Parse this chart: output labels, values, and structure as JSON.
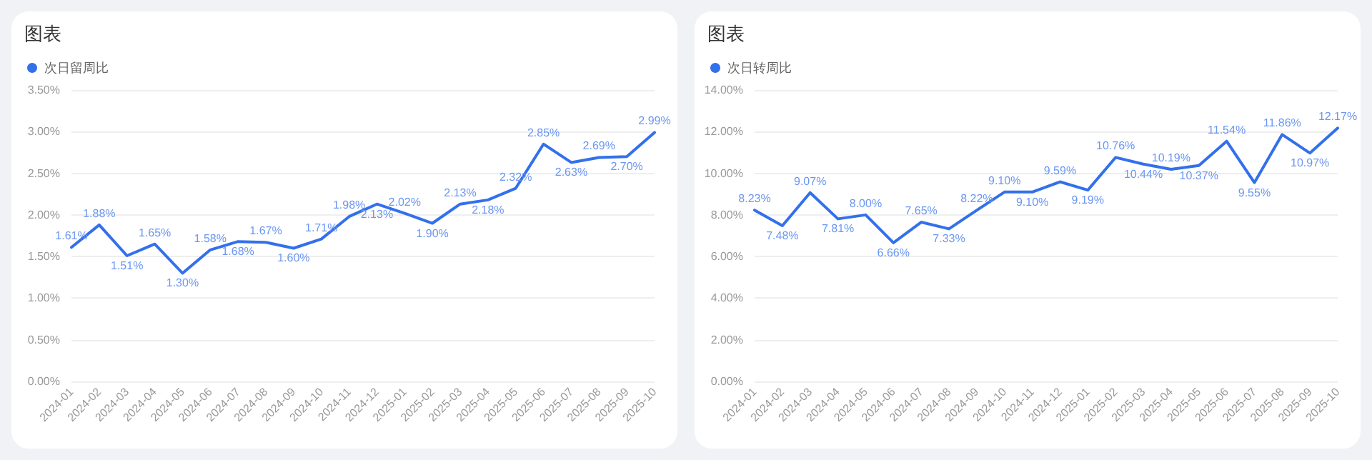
{
  "chart_data": [
    {
      "type": "line",
      "title": "图表",
      "categories": [
        "2024-01",
        "2024-02",
        "2024-03",
        "2024-04",
        "2024-05",
        "2024-06",
        "2024-07",
        "2024-08",
        "2024-09",
        "2024-10",
        "2024-11",
        "2024-12",
        "2025-01",
        "2025-02",
        "2025-03",
        "2025-04",
        "2025-05",
        "2025-06",
        "2025-07",
        "2025-08",
        "2025-09",
        "2025-10"
      ],
      "series": [
        {
          "name": "次日留周比",
          "color": "#3370eb",
          "values": [
            1.61,
            1.88,
            1.51,
            1.65,
            1.3,
            1.58,
            1.68,
            1.67,
            1.6,
            1.71,
            1.98,
            2.13,
            2.02,
            1.9,
            2.13,
            2.18,
            2.32,
            2.85,
            2.63,
            2.69,
            2.7,
            2.99
          ],
          "value_labels": [
            "1.61%",
            "1.88%",
            "1.51%",
            "1.65%",
            "1.30%",
            "1.58%",
            "1.68%",
            "1.67%",
            "1.60%",
            "1.71%",
            "1.98%",
            "2.13%",
            "2.02%",
            "1.90%",
            "2.13%",
            "2.18%",
            "2.32%",
            "2.85%",
            "2.63%",
            "2.69%",
            "2.70%",
            "2.99%"
          ]
        }
      ],
      "ylim": [
        0,
        3.5
      ],
      "yticks": [
        {
          "value": 0,
          "label": "0.00%"
        },
        {
          "value": 0.5,
          "label": "0.50%"
        },
        {
          "value": 1,
          "label": "1.00%"
        },
        {
          "value": 1.5,
          "label": "1.50%"
        },
        {
          "value": 2,
          "label": "2.00%"
        },
        {
          "value": 2.5,
          "label": "2.50%"
        },
        {
          "value": 3,
          "label": "3.00%"
        },
        {
          "value": 3.5,
          "label": "3.50%"
        }
      ],
      "grid": "y",
      "legend": "top left",
      "marker": "none",
      "line_style": "solid"
    },
    {
      "type": "line",
      "title": "图表",
      "categories": [
        "2024-01",
        "2024-02",
        "2024-03",
        "2024-04",
        "2024-05",
        "2024-06",
        "2024-07",
        "2024-08",
        "2024-09",
        "2024-10",
        "2024-11",
        "2024-12",
        "2025-01",
        "2025-02",
        "2025-03",
        "2025-04",
        "2025-05",
        "2025-06",
        "2025-07",
        "2025-08",
        "2025-09",
        "2025-10"
      ],
      "series": [
        {
          "name": "次日转周比",
          "color": "#3370eb",
          "values": [
            8.23,
            7.48,
            9.07,
            7.81,
            8.0,
            6.66,
            7.65,
            7.33,
            8.22,
            9.1,
            9.1,
            9.59,
            9.19,
            10.76,
            10.44,
            10.19,
            10.37,
            11.54,
            9.55,
            11.86,
            10.97,
            12.17
          ],
          "value_labels": [
            "8.23%",
            "7.48%",
            "9.07%",
            "7.81%",
            "8.00%",
            "6.66%",
            "7.65%",
            "7.33%",
            "8.22%",
            "9.10%",
            "9.10%",
            "9.59%",
            "9.19%",
            "10.76%",
            "10.44%",
            "10.19%",
            "10.37%",
            "11.54%",
            "9.55%",
            "11.86%",
            "10.97%",
            "12.17%"
          ]
        }
      ],
      "ylim": [
        0,
        14
      ],
      "yticks": [
        {
          "value": 0,
          "label": "0.00%"
        },
        {
          "value": 2,
          "label": "2.00%"
        },
        {
          "value": 4,
          "label": "4.00%"
        },
        {
          "value": 6,
          "label": "6.00%"
        },
        {
          "value": 8,
          "label": "8.00%"
        },
        {
          "value": 10,
          "label": "10.00%"
        },
        {
          "value": 12,
          "label": "12.00%"
        },
        {
          "value": 14,
          "label": "14.00%"
        }
      ],
      "grid": "y",
      "legend": "top left",
      "marker": "none",
      "line_style": "solid"
    }
  ]
}
